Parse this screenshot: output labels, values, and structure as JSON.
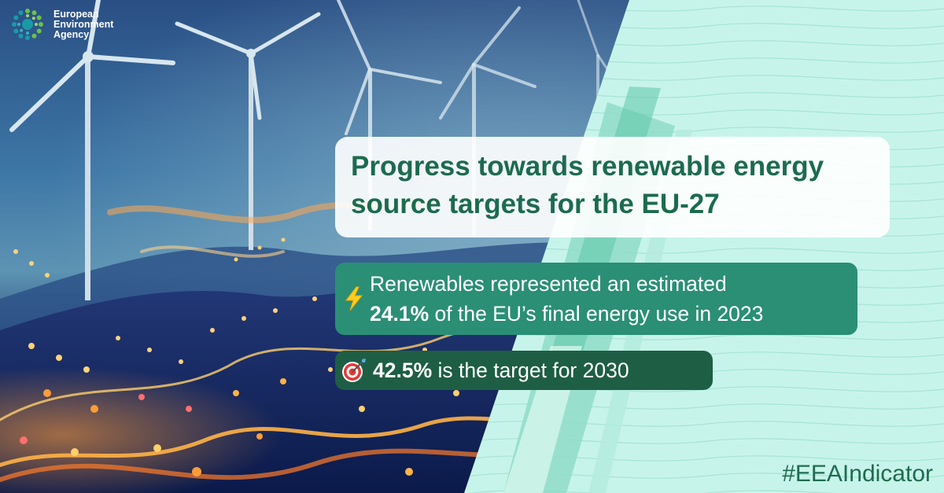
{
  "logo": {
    "lines": [
      "European",
      "Environment",
      "Agency"
    ],
    "icon": "eea-sun-ring-icon"
  },
  "title": {
    "line1": "Progress towards renewable energy",
    "line2": "source targets for the EU-27"
  },
  "stat": {
    "icon": "lightning-bolt-icon",
    "line1": "Renewables represented an estimated",
    "line2_value": "24.1%",
    "line2_rest": " of the EU’s final energy use in 2023"
  },
  "target": {
    "icon": "bullseye-dart-icon",
    "value": "42.5%",
    "rest": " is the target for 2030"
  },
  "hashtag": "#EEAIndicator",
  "colors": {
    "title_text": "#1c6b4e",
    "stat_card": "#2a8f75",
    "target_card": "#1e5e45",
    "mint_panel": "#c7f4ea",
    "hashtag_text": "#1f6b4f"
  }
}
